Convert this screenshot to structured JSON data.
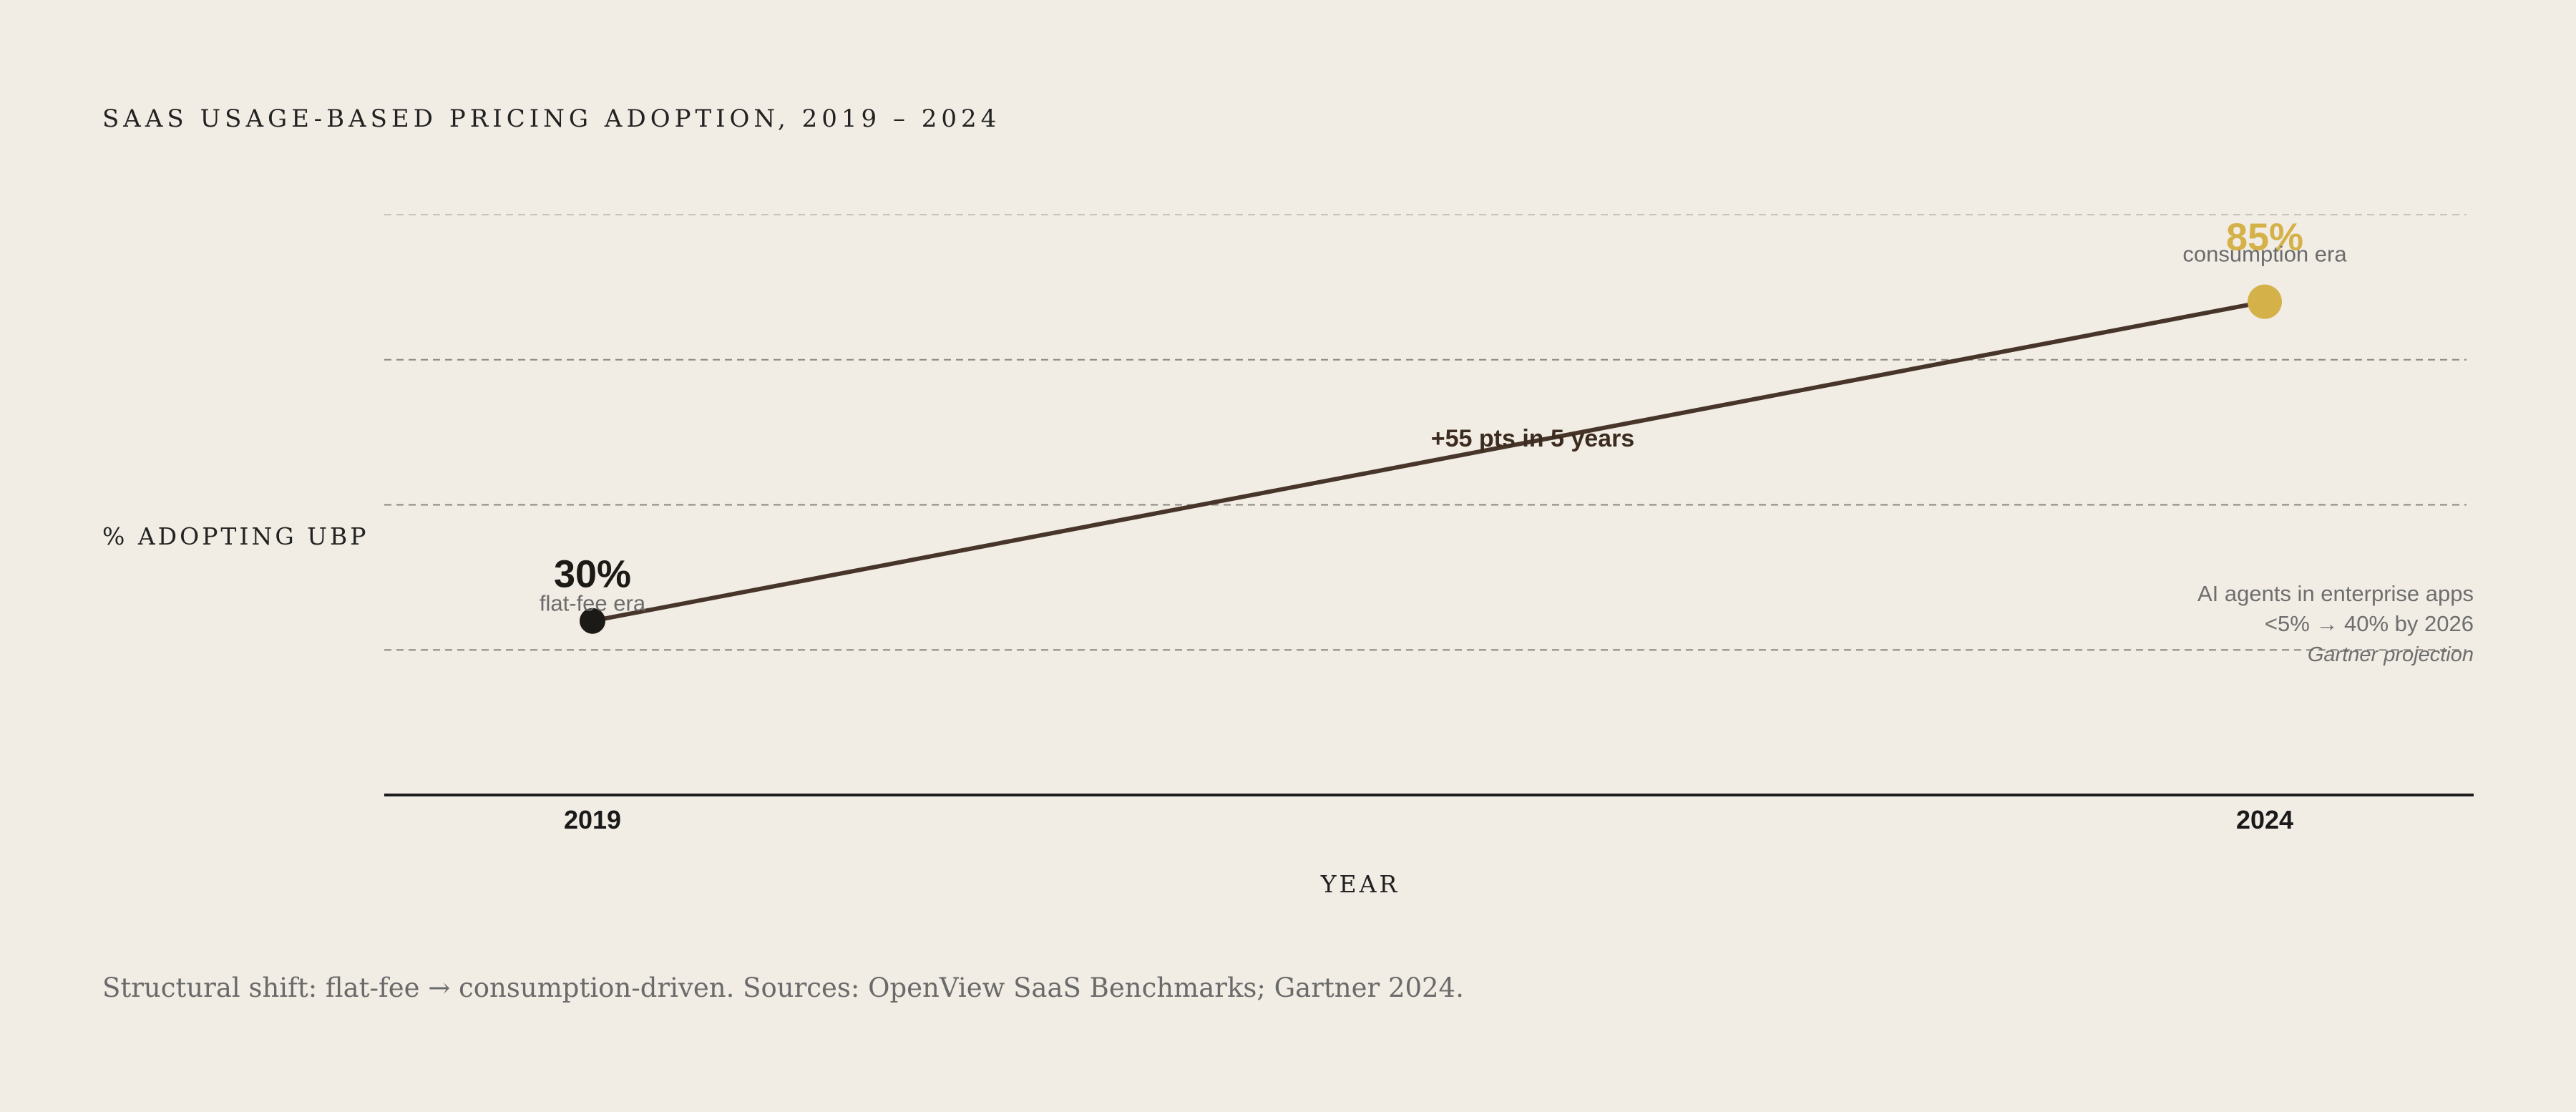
{
  "chart_data": {
    "type": "line",
    "title": "SAAS USAGE-BASED PRICING ADOPTION, 2019 – 2024",
    "xlabel": "YEAR",
    "ylabel": "% ADOPTING UBP",
    "x": [
      2019,
      2024
    ],
    "x_tick_labels": [
      "2019",
      "2024"
    ],
    "ylim": [
      0,
      100
    ],
    "grid": true,
    "series": [
      {
        "values": [
          30,
          85
        ],
        "color": "#47352a"
      }
    ],
    "points": [
      {
        "x": 2019,
        "y": 30,
        "value_label": "30%",
        "sub_label": "flat-fee era",
        "color": "#1c1a17"
      },
      {
        "x": 2024,
        "y": 85,
        "value_label": "85%",
        "sub_label": "consumption era",
        "color": "#d4b249"
      }
    ],
    "annotations": {
      "delta": "+55 pts in 5 years",
      "note_lines": [
        "AI agents in enterprise apps",
        "<5% → 40% by 2026"
      ],
      "note_source": "Gartner projection"
    },
    "footer": "Structural shift: flat-fee → consumption-driven. Sources: OpenView SaaS Benchmarks; Gartner 2024."
  }
}
